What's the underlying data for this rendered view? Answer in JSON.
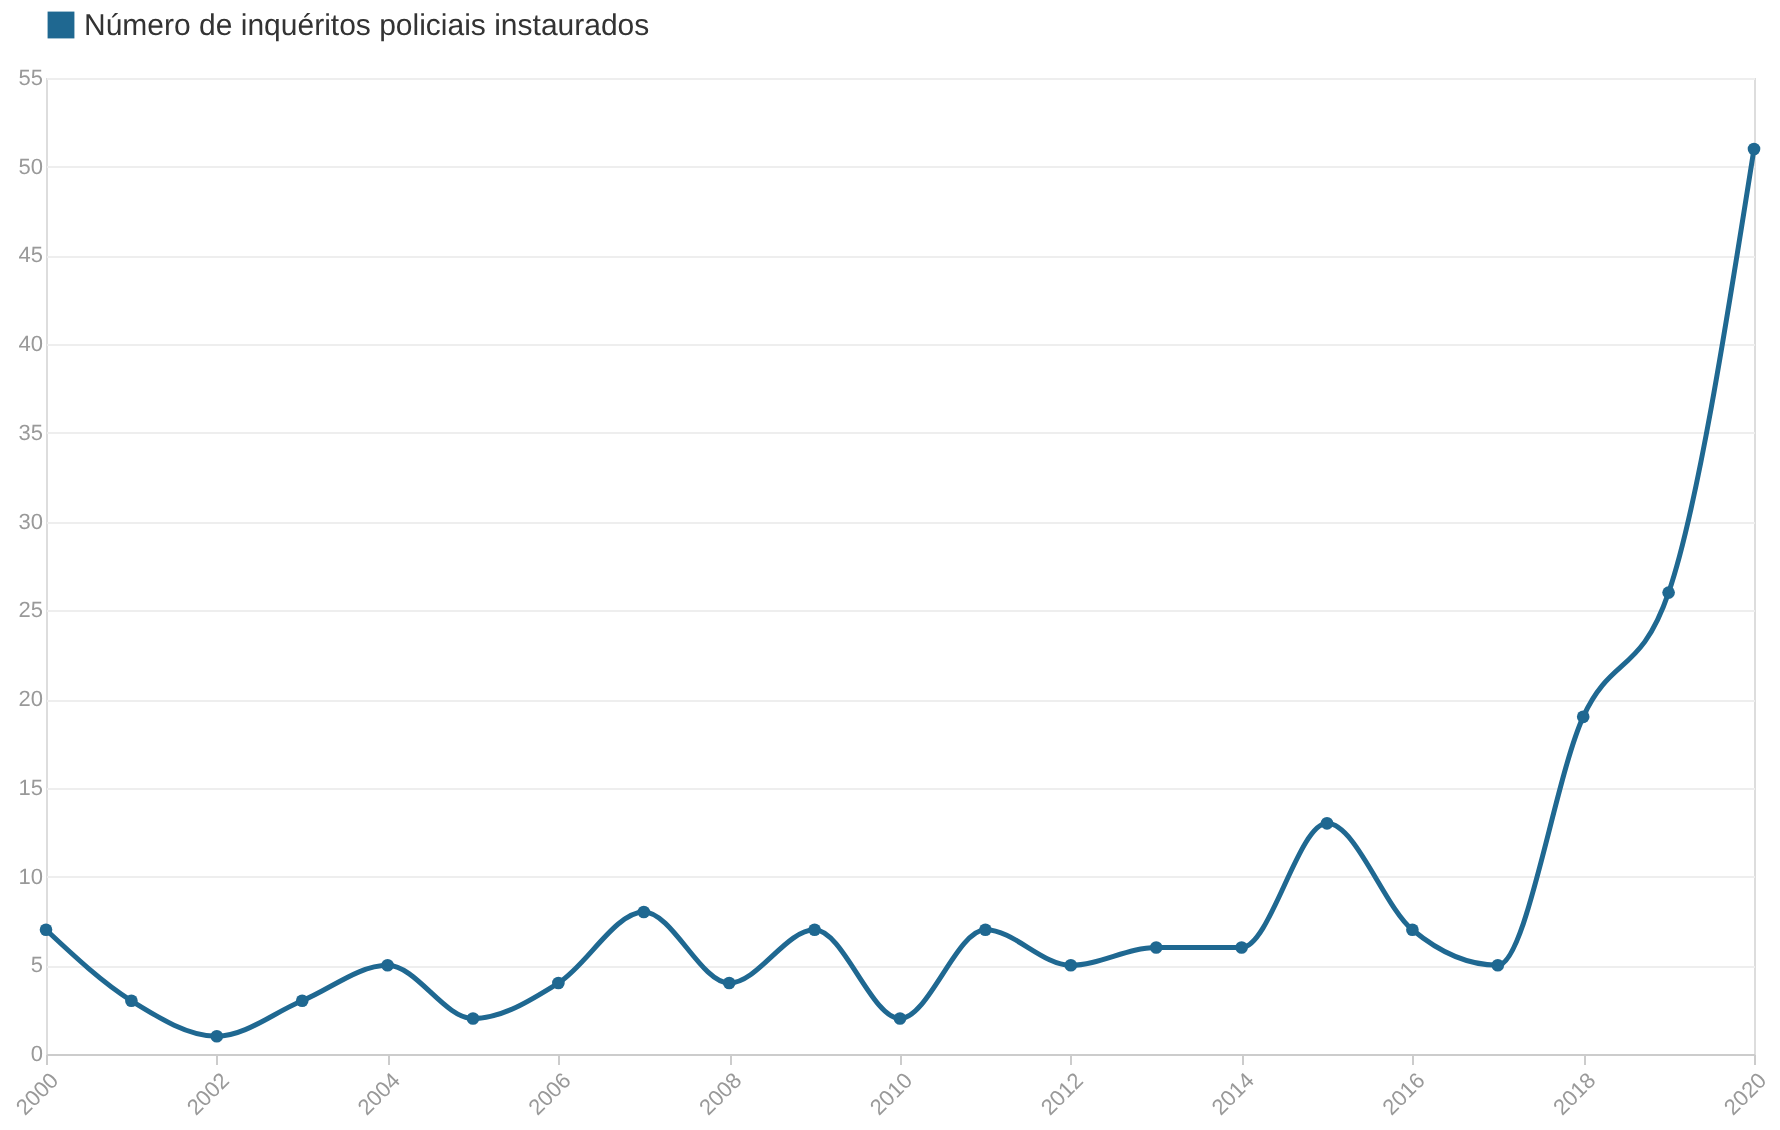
{
  "chart_data": {
    "type": "line",
    "x": [
      2000,
      2001,
      2002,
      2003,
      2004,
      2005,
      2006,
      2007,
      2008,
      2009,
      2010,
      2011,
      2012,
      2013,
      2014,
      2015,
      2016,
      2017,
      2018,
      2019,
      2020
    ],
    "series": [
      {
        "name": "Número de inquéritos policiais instaurados",
        "color": "#1f6891",
        "values": [
          7,
          3,
          1,
          3,
          5,
          2,
          4,
          8,
          4,
          7,
          2,
          7,
          5,
          6,
          6,
          13,
          7,
          5,
          19,
          26,
          51
        ]
      }
    ],
    "xlim": [
      2000,
      2020
    ],
    "xticks": [
      2000,
      2002,
      2004,
      2006,
      2008,
      2010,
      2012,
      2014,
      2016,
      2018,
      2020
    ],
    "ylim": [
      0,
      55
    ],
    "yticks": [
      0,
      5,
      10,
      15,
      20,
      25,
      30,
      35,
      40,
      45,
      50,
      55
    ],
    "grid": "y",
    "legend": "top left",
    "marker": "circle",
    "line_style": "solid"
  }
}
